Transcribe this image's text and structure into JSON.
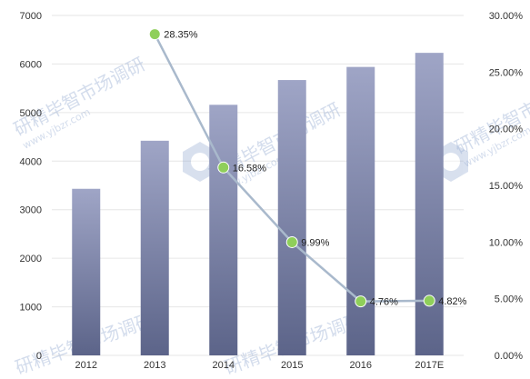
{
  "chart_data": {
    "type": "bar",
    "categories": [
      "2012",
      "2013",
      "2014",
      "2015",
      "2016",
      "2017E"
    ],
    "series": [
      {
        "type": "bar",
        "axis": "left",
        "values": [
          3430,
          4420,
          5160,
          5670,
          5940,
          6230
        ]
      },
      {
        "type": "line",
        "axis": "right",
        "values": [
          null,
          28.35,
          16.58,
          9.99,
          4.76,
          4.82
        ],
        "labels": [
          "",
          "28.35%",
          "16.58%",
          "9.99%",
          "4.76%",
          "4.82%"
        ]
      }
    ],
    "y_left": {
      "min": 0,
      "max": 7000,
      "ticks": [
        "0",
        "1000",
        "2000",
        "3000",
        "4000",
        "5000",
        "6000",
        "7000"
      ]
    },
    "y_right": {
      "min": 0,
      "max": 30,
      "ticks": [
        "0.00%",
        "5.00%",
        "10.00%",
        "15.00%",
        "20.00%",
        "25.00%",
        "30.00%"
      ]
    },
    "grid": true,
    "legend": "none",
    "colors": {
      "bar_top": "#9fa5c6",
      "bar_bottom": "#5c6489",
      "line": "#a9b9cc",
      "marker": "#8fcf5a",
      "grid": "#e6e6e6"
    }
  },
  "watermark": {
    "text": "研精毕智市场调研",
    "url": "www.yjbzr.com"
  }
}
